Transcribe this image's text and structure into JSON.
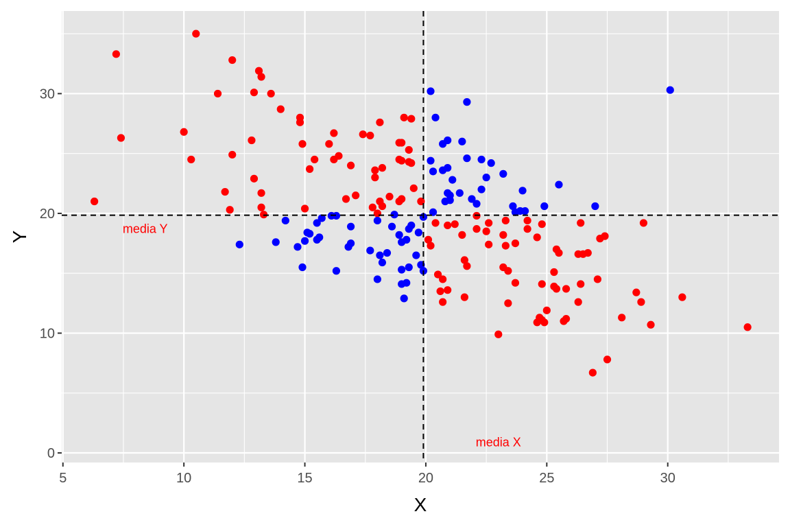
{
  "chart_data": {
    "type": "scatter",
    "xlabel": "X",
    "ylabel": "Y",
    "xlim": [
      4.95,
      34.6
    ],
    "ylim": [
      -0.8,
      36.9
    ],
    "x_ticks": [
      5,
      10,
      15,
      20,
      25,
      30
    ],
    "y_ticks": [
      0,
      10,
      20,
      30
    ],
    "grid": true,
    "colors": {
      "panel": "#e5e5e5",
      "grid": "#ffffff",
      "quadrant_above": "#ff0000",
      "quadrant_below": "#0000ff"
    },
    "reference_lines": [
      {
        "axis": "x",
        "value": 19.9,
        "style": "dashed",
        "label": "media X"
      },
      {
        "axis": "y",
        "value": 19.85,
        "style": "dashed",
        "label": "media Y"
      }
    ],
    "annotations": [
      {
        "text": "media Y",
        "x": 8.4,
        "y": 18.7,
        "color": "#ff0000"
      },
      {
        "text": "media X",
        "x": 23.0,
        "y": 0.9,
        "color": "#ff0000"
      }
    ],
    "series": [
      {
        "color": "#ff0000",
        "points": [
          [
            6.3,
            21.0
          ],
          [
            7.2,
            33.3
          ],
          [
            7.4,
            26.3
          ],
          [
            10.0,
            26.8
          ],
          [
            10.3,
            24.5
          ],
          [
            10.5,
            35.0
          ],
          [
            11.4,
            30.0
          ],
          [
            11.7,
            21.8
          ],
          [
            11.9,
            20.3
          ],
          [
            12.0,
            32.8
          ],
          [
            12.0,
            24.9
          ],
          [
            12.8,
            26.1
          ],
          [
            12.9,
            30.1
          ],
          [
            12.9,
            22.9
          ],
          [
            13.1,
            31.9
          ],
          [
            13.2,
            31.4
          ],
          [
            13.2,
            21.7
          ],
          [
            13.2,
            20.5
          ],
          [
            13.3,
            19.9
          ],
          [
            13.6,
            30.0
          ],
          [
            14.0,
            28.7
          ],
          [
            14.8,
            28.0
          ],
          [
            14.8,
            27.6
          ],
          [
            14.9,
            25.8
          ],
          [
            15.0,
            20.4
          ],
          [
            15.2,
            23.7
          ],
          [
            15.4,
            24.5
          ],
          [
            16.0,
            25.8
          ],
          [
            16.2,
            26.7
          ],
          [
            16.2,
            24.5
          ],
          [
            16.4,
            24.8
          ],
          [
            16.7,
            21.2
          ],
          [
            16.9,
            24.0
          ],
          [
            17.1,
            21.5
          ],
          [
            17.4,
            26.6
          ],
          [
            17.7,
            26.5
          ],
          [
            17.8,
            20.5
          ],
          [
            17.9,
            23.0
          ],
          [
            17.9,
            23.6
          ],
          [
            18.0,
            20.0
          ],
          [
            18.1,
            27.6
          ],
          [
            18.1,
            21.0
          ],
          [
            18.2,
            23.8
          ],
          [
            18.2,
            20.6
          ],
          [
            18.5,
            21.4
          ],
          [
            18.9,
            24.5
          ],
          [
            18.9,
            21.0
          ],
          [
            18.9,
            25.9
          ],
          [
            19.0,
            24.4
          ],
          [
            19.0,
            21.2
          ],
          [
            19.0,
            25.9
          ],
          [
            19.1,
            28.0
          ],
          [
            19.3,
            25.3
          ],
          [
            19.3,
            24.3
          ],
          [
            19.4,
            27.9
          ],
          [
            19.4,
            24.2
          ],
          [
            19.5,
            22.1
          ],
          [
            19.8,
            21.0
          ],
          [
            20.1,
            17.8
          ],
          [
            20.2,
            17.3
          ],
          [
            20.4,
            19.2
          ],
          [
            20.5,
            14.9
          ],
          [
            20.6,
            13.5
          ],
          [
            20.7,
            14.5
          ],
          [
            20.7,
            12.6
          ],
          [
            20.9,
            19.0
          ],
          [
            20.9,
            13.6
          ],
          [
            21.2,
            19.1
          ],
          [
            21.5,
            18.2
          ],
          [
            21.6,
            16.1
          ],
          [
            21.7,
            15.6
          ],
          [
            21.6,
            13.0
          ],
          [
            22.1,
            19.8
          ],
          [
            22.1,
            18.7
          ],
          [
            22.5,
            18.5
          ],
          [
            22.6,
            19.2
          ],
          [
            22.6,
            17.4
          ],
          [
            23.0,
            9.9
          ],
          [
            23.2,
            15.5
          ],
          [
            23.2,
            18.2
          ],
          [
            23.4,
            12.5
          ],
          [
            23.3,
            19.4
          ],
          [
            23.3,
            17.3
          ],
          [
            23.4,
            15.2
          ],
          [
            23.7,
            17.5
          ],
          [
            23.7,
            14.2
          ],
          [
            24.2,
            19.4
          ],
          [
            24.2,
            18.7
          ],
          [
            24.6,
            18.0
          ],
          [
            24.6,
            10.9
          ],
          [
            24.7,
            11.3
          ],
          [
            24.8,
            11.1
          ],
          [
            24.8,
            14.1
          ],
          [
            24.8,
            19.1
          ],
          [
            24.9,
            10.9
          ],
          [
            25.0,
            11.9
          ],
          [
            25.3,
            15.1
          ],
          [
            25.3,
            13.9
          ],
          [
            25.4,
            13.7
          ],
          [
            25.4,
            17.0
          ],
          [
            25.5,
            16.7
          ],
          [
            25.7,
            11.0
          ],
          [
            25.8,
            13.7
          ],
          [
            25.8,
            11.2
          ],
          [
            26.3,
            16.6
          ],
          [
            26.3,
            12.6
          ],
          [
            26.4,
            14.1
          ],
          [
            26.4,
            19.2
          ],
          [
            26.5,
            16.6
          ],
          [
            26.7,
            16.7
          ],
          [
            26.9,
            6.7
          ],
          [
            27.1,
            14.5
          ],
          [
            27.2,
            17.9
          ],
          [
            27.4,
            18.1
          ],
          [
            27.5,
            7.8
          ],
          [
            28.1,
            11.3
          ],
          [
            28.7,
            13.4
          ],
          [
            28.9,
            12.6
          ],
          [
            29.0,
            19.2
          ],
          [
            29.3,
            10.7
          ],
          [
            30.6,
            13.0
          ],
          [
            33.3,
            10.5
          ]
        ]
      },
      {
        "color": "#0000ff",
        "points": [
          [
            12.3,
            17.4
          ],
          [
            13.8,
            17.6
          ],
          [
            14.2,
            19.4
          ],
          [
            14.7,
            17.2
          ],
          [
            14.9,
            15.5
          ],
          [
            15.0,
            17.7
          ],
          [
            15.1,
            18.4
          ],
          [
            15.2,
            18.3
          ],
          [
            15.5,
            19.2
          ],
          [
            15.5,
            17.8
          ],
          [
            15.6,
            18.0
          ],
          [
            15.7,
            19.6
          ],
          [
            16.1,
            19.8
          ],
          [
            16.3,
            19.8
          ],
          [
            16.3,
            15.2
          ],
          [
            16.8,
            17.2
          ],
          [
            16.9,
            17.5
          ],
          [
            16.9,
            18.9
          ],
          [
            17.7,
            16.9
          ],
          [
            18.0,
            19.4
          ],
          [
            18.0,
            14.5
          ],
          [
            18.1,
            16.5
          ],
          [
            18.2,
            15.9
          ],
          [
            18.4,
            16.7
          ],
          [
            18.6,
            18.9
          ],
          [
            18.7,
            19.9
          ],
          [
            18.9,
            18.2
          ],
          [
            19.0,
            17.6
          ],
          [
            19.0,
            15.3
          ],
          [
            19.0,
            14.1
          ],
          [
            19.1,
            12.9
          ],
          [
            19.2,
            14.2
          ],
          [
            19.2,
            17.8
          ],
          [
            19.3,
            18.7
          ],
          [
            19.3,
            15.5
          ],
          [
            19.4,
            19.0
          ],
          [
            19.6,
            16.5
          ],
          [
            19.7,
            18.4
          ],
          [
            19.8,
            15.7
          ],
          [
            19.9,
            15.2
          ],
          [
            19.9,
            19.7
          ],
          [
            20.2,
            30.2
          ],
          [
            20.2,
            24.4
          ],
          [
            20.3,
            23.5
          ],
          [
            20.3,
            20.1
          ],
          [
            20.4,
            28.0
          ],
          [
            20.7,
            23.6
          ],
          [
            20.7,
            25.8
          ],
          [
            20.8,
            21.0
          ],
          [
            20.9,
            21.7
          ],
          [
            20.9,
            23.8
          ],
          [
            20.9,
            26.1
          ],
          [
            21.0,
            21.1
          ],
          [
            21.0,
            21.5
          ],
          [
            21.1,
            22.8
          ],
          [
            21.4,
            21.7
          ],
          [
            21.5,
            26.0
          ],
          [
            21.7,
            29.3
          ],
          [
            21.7,
            24.6
          ],
          [
            21.9,
            21.2
          ],
          [
            22.1,
            20.8
          ],
          [
            22.3,
            22.0
          ],
          [
            22.3,
            24.5
          ],
          [
            22.5,
            23.0
          ],
          [
            22.7,
            24.2
          ],
          [
            23.2,
            23.3
          ],
          [
            23.6,
            20.6
          ],
          [
            23.7,
            20.1
          ],
          [
            23.9,
            20.2
          ],
          [
            24.0,
            21.9
          ],
          [
            24.1,
            20.2
          ],
          [
            24.9,
            20.6
          ],
          [
            25.5,
            22.4
          ],
          [
            27.0,
            20.6
          ],
          [
            30.1,
            30.3
          ]
        ]
      }
    ]
  }
}
